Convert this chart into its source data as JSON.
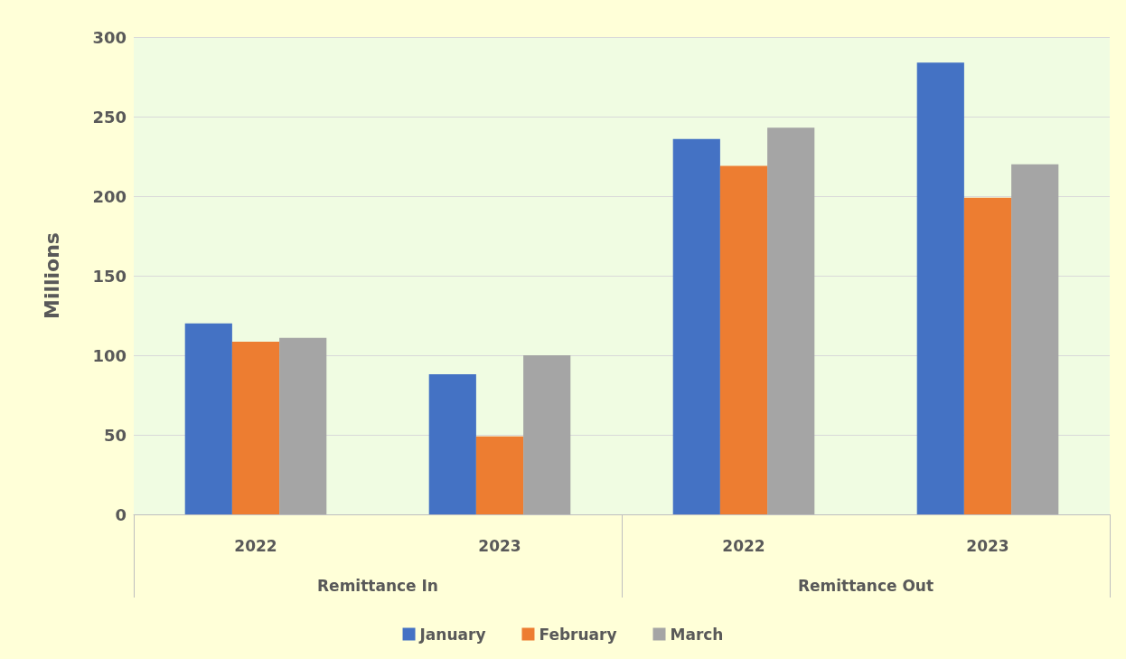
{
  "chart_data": {
    "type": "bar",
    "ylabel": "Millions",
    "categories": [
      "2022",
      "2023",
      "2022",
      "2023"
    ],
    "annotations": [
      "Remittance In",
      "Remittance Out"
    ],
    "series": [
      {
        "name": "January",
        "color": "#4472c4",
        "values": [
          120,
          88,
          236,
          284
        ]
      },
      {
        "name": "February",
        "color": "#ed7d31",
        "values": [
          108.5,
          49,
          219,
          199
        ]
      },
      {
        "name": "March",
        "color": "#a5a5a5",
        "values": [
          111,
          100,
          243,
          220
        ]
      }
    ],
    "ylim": [
      0,
      300
    ],
    "yticks": [
      0,
      50,
      100,
      150,
      200,
      250,
      300
    ],
    "grid": "y",
    "legend": "bottom"
  }
}
